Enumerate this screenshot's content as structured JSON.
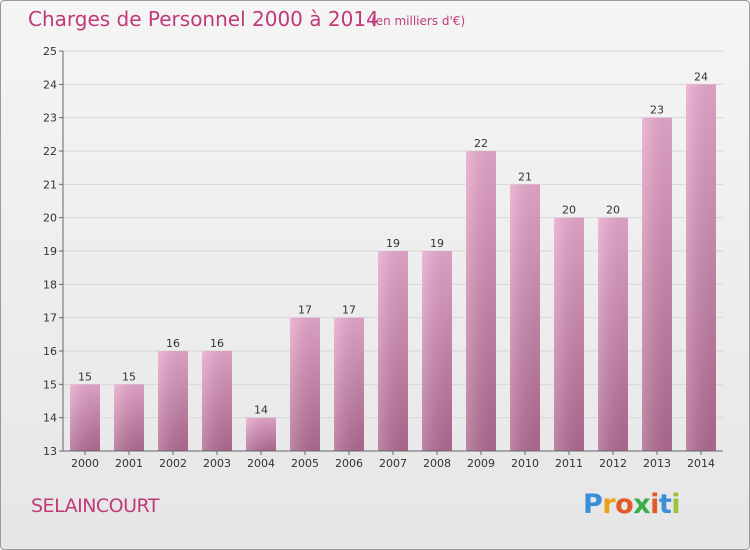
{
  "header": {
    "title": "Charges de Personnel 2000 à 2014",
    "subtitle": "(en milliers d'€)"
  },
  "footer": {
    "commune": "SELAINCOURT",
    "logo_letters": [
      "P",
      "r",
      "o",
      "x",
      "i",
      "t",
      "i"
    ],
    "logo_colors": [
      "#3a8fd6",
      "#e8a21c",
      "#e05a2a",
      "#3ab04a",
      "#e05a2a",
      "#3a8fd6",
      "#9ec23a"
    ]
  },
  "colors": {
    "bar_top": "#e8a9cd",
    "bar_bottom": "#b06a92",
    "axis": "#666666",
    "grid": "#d7d7d7",
    "text": "#333333"
  },
  "chart_data": {
    "type": "bar",
    "title": "Charges de Personnel 2000 à 2014",
    "subtitle": "(en milliers d'€)",
    "xlabel": "",
    "ylabel": "",
    "categories": [
      "2000",
      "2001",
      "2002",
      "2003",
      "2004",
      "2005",
      "2006",
      "2007",
      "2008",
      "2009",
      "2010",
      "2011",
      "2012",
      "2013",
      "2014"
    ],
    "values": [
      15,
      15,
      16,
      16,
      14,
      17,
      17,
      19,
      19,
      22,
      21,
      20,
      20,
      23,
      24
    ],
    "ylim": [
      13,
      25
    ],
    "yticks": [
      13,
      14,
      15,
      16,
      17,
      18,
      19,
      20,
      21,
      22,
      23,
      24,
      25
    ],
    "grid": true,
    "legend": "none",
    "data_labels": true
  }
}
